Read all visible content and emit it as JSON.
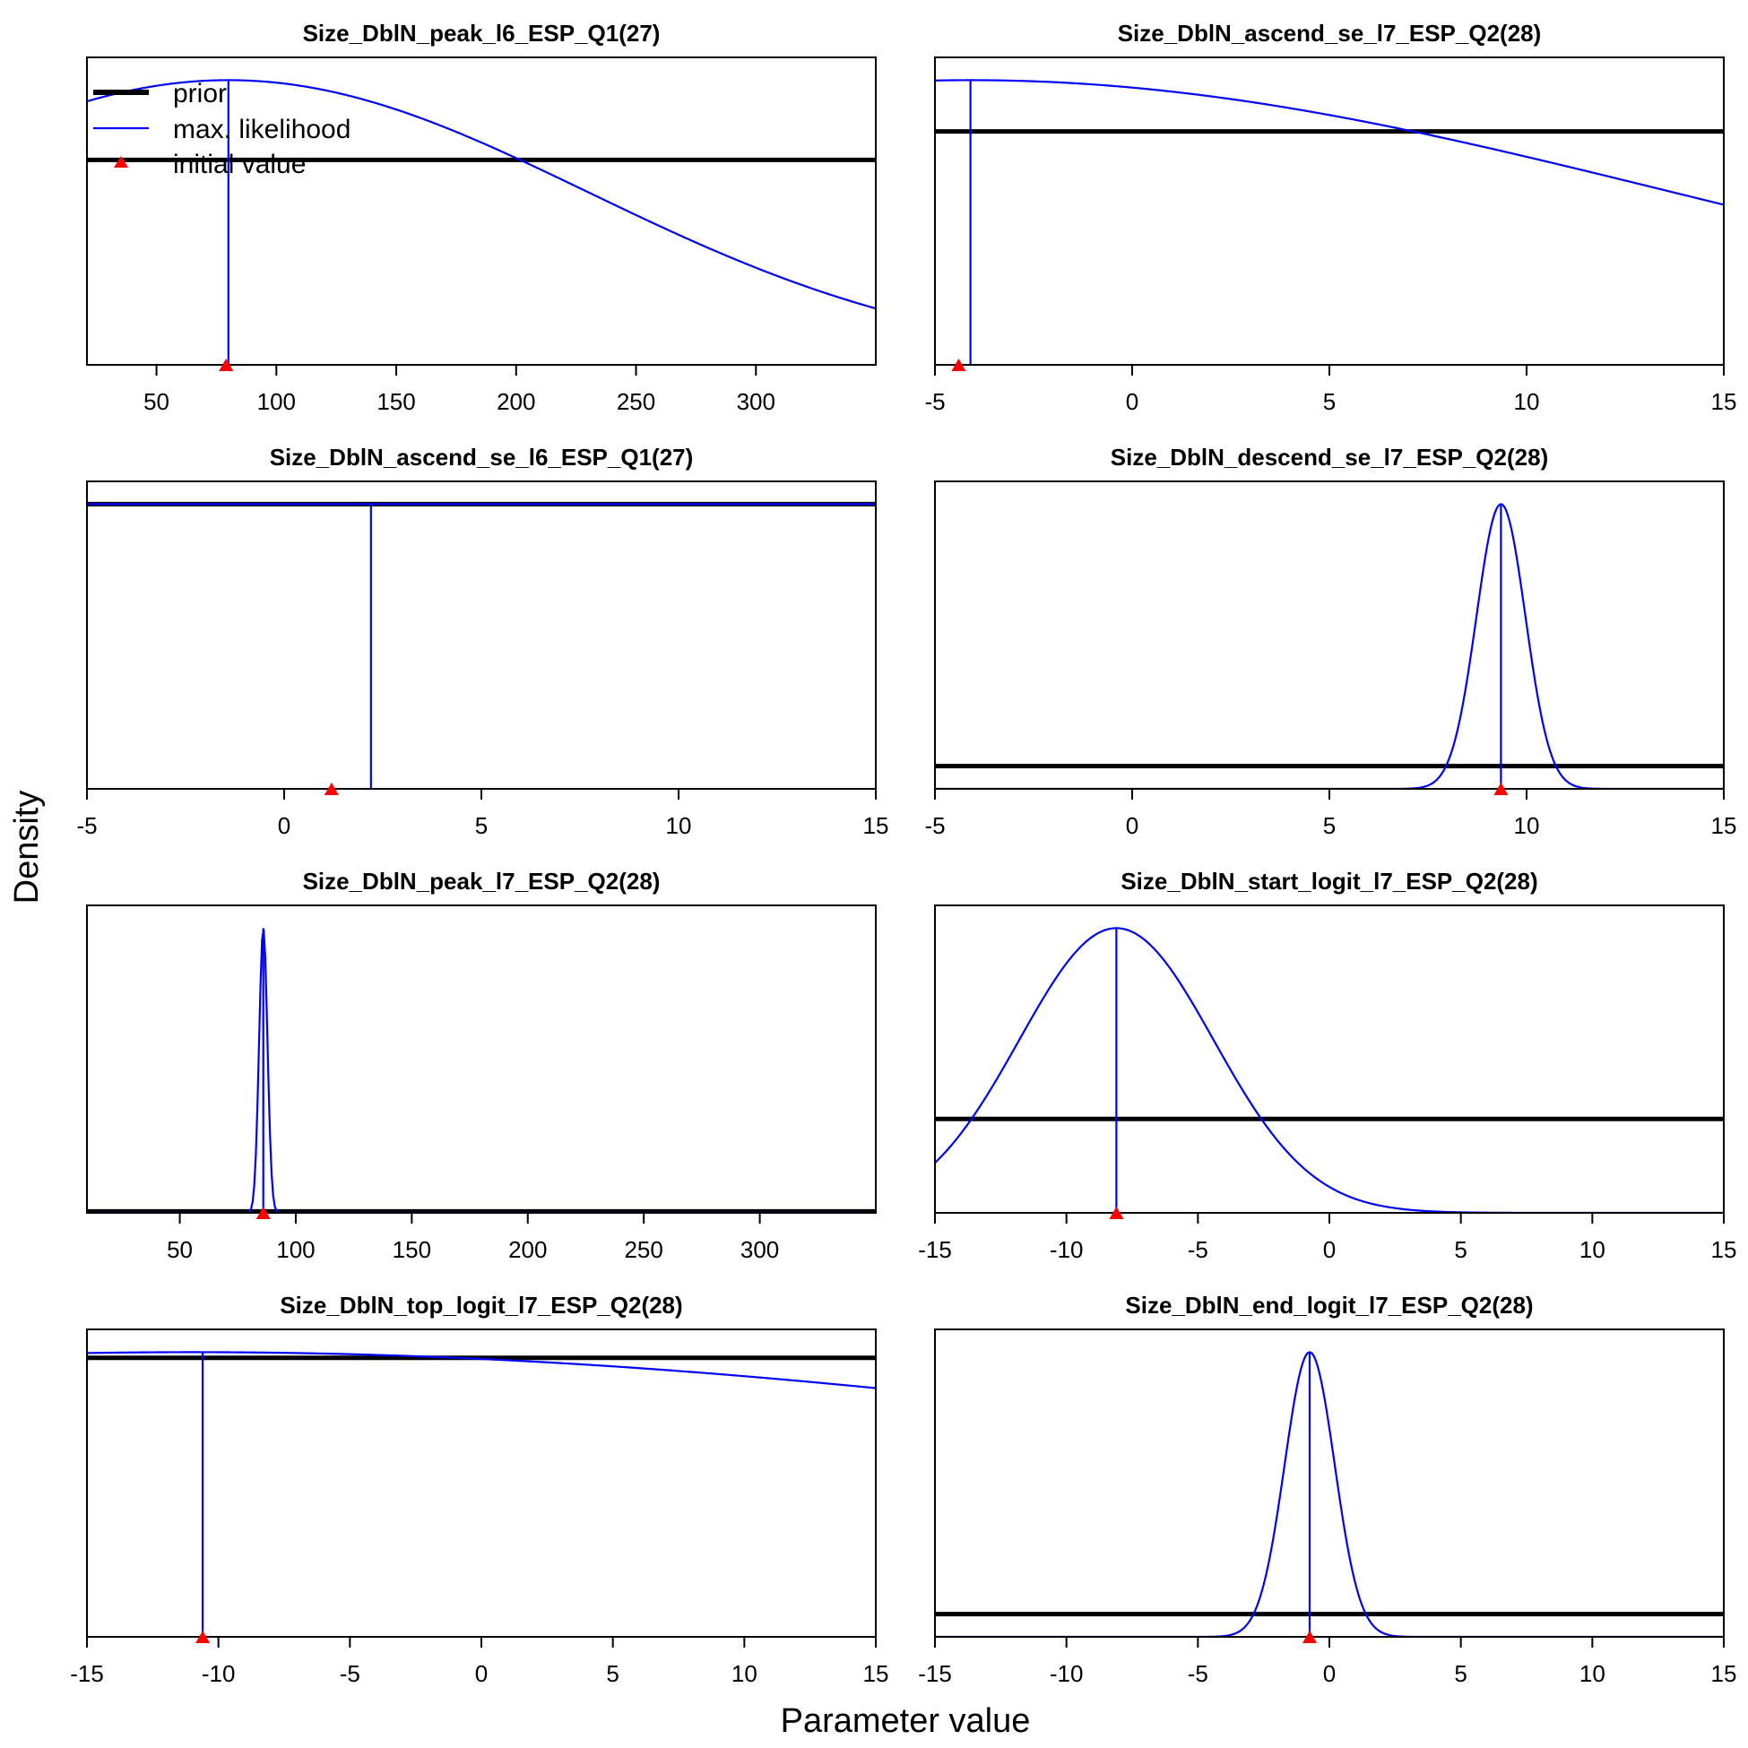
{
  "figure": {
    "xlabel": "Parameter value",
    "ylabel": "Density",
    "colors": {
      "prior": "#000000",
      "mle": "#0000ff",
      "initial": "#ff0000"
    }
  },
  "legend": {
    "placement": "top-left of first panel",
    "items": [
      {
        "label": "prior",
        "style": "thick-black-line"
      },
      {
        "label": "max. likelihood",
        "style": "blue-line"
      },
      {
        "label": "initial value",
        "style": "red-triangle"
      }
    ]
  },
  "chart_data": [
    {
      "type": "line",
      "title": "Size_DblN_peak_l6_ESP_Q1(27)",
      "xlim": [
        21,
        350
      ],
      "ylim": [
        0,
        1.08
      ],
      "xticks": [
        50,
        100,
        150,
        200,
        250,
        300
      ],
      "prior": {
        "kind": "uniform",
        "level": 0.72
      },
      "mle": {
        "kind": "normal",
        "mean": 80,
        "sd": 150,
        "peak": 1.0
      },
      "mle_estimate": 80,
      "initial_value": 79
    },
    {
      "type": "line",
      "title": "Size_DblN_ascend_se_l7_ESP_Q2(28)",
      "xlim": [
        -5,
        15
      ],
      "ylim": [
        0,
        1.08
      ],
      "xticks": [
        -5,
        0,
        5,
        10,
        15
      ],
      "prior": {
        "kind": "uniform",
        "level": 0.82
      },
      "mle": {
        "kind": "normal",
        "mean": -4.1,
        "sd": 17.8,
        "peak": 1.0
      },
      "mle_estimate": -4.1,
      "initial_value": -4.4
    },
    {
      "type": "line",
      "title": "Size_DblN_ascend_se_l6_ESP_Q1(27)",
      "xlim": [
        -5,
        15
      ],
      "ylim": [
        0,
        1.08
      ],
      "xticks": [
        -5,
        0,
        5,
        10,
        15
      ],
      "prior": {
        "kind": "uniform",
        "level": 1.0
      },
      "mle": {
        "kind": "normal",
        "mean": 2.2,
        "sd": 2000,
        "peak": 1.0
      },
      "mle_estimate": 2.2,
      "initial_value": 1.2
    },
    {
      "type": "line",
      "title": "Size_DblN_descend_se_l7_ESP_Q2(28)",
      "xlim": [
        -5,
        15
      ],
      "ylim": [
        0,
        1.08
      ],
      "xticks": [
        -5,
        0,
        5,
        10,
        15
      ],
      "prior": {
        "kind": "uniform",
        "level": 0.08
      },
      "mle": {
        "kind": "normal",
        "mean": 9.35,
        "sd": 0.62,
        "peak": 1.0
      },
      "mle_estimate": 9.35,
      "initial_value": 9.35
    },
    {
      "type": "line",
      "title": "Size_DblN_peak_l7_ESP_Q2(28)",
      "xlim": [
        10,
        350
      ],
      "ylim": [
        0,
        1.08
      ],
      "xticks": [
        50,
        100,
        150,
        200,
        250,
        300
      ],
      "prior": {
        "kind": "uniform",
        "level": 0.005
      },
      "mle": {
        "kind": "normal",
        "mean": 86,
        "sd": 1.8,
        "peak": 1.0
      },
      "mle_estimate": 86,
      "initial_value": 86
    },
    {
      "type": "line",
      "title": "Size_DblN_start_logit_l7_ESP_Q2(28)",
      "xlim": [
        -15,
        15
      ],
      "ylim": [
        0,
        1.08
      ],
      "xticks": [
        -15,
        -10,
        -5,
        0,
        5,
        10,
        15
      ],
      "prior": {
        "kind": "uniform",
        "level": 0.33
      },
      "mle": {
        "kind": "normal",
        "mean": -8.1,
        "sd": 3.7,
        "peak": 1.0
      },
      "mle_estimate": -8.1,
      "initial_value": -8.1
    },
    {
      "type": "line",
      "title": "Size_DblN_top_logit_l7_ESP_Q2(28)",
      "xlim": [
        -15,
        15
      ],
      "ylim": [
        0,
        1.08
      ],
      "xticks": [
        -15,
        -10,
        -5,
        0,
        5,
        10,
        15
      ],
      "prior": {
        "kind": "uniform",
        "level": 0.98
      },
      "mle": {
        "kind": "normal",
        "mean": -11,
        "sd": 50,
        "peak": 1.0
      },
      "mle_estimate": -10.6,
      "initial_value": -10.6
    },
    {
      "type": "line",
      "title": "Size_DblN_end_logit_l7_ESP_Q2(28)",
      "xlim": [
        -15,
        15
      ],
      "ylim": [
        0,
        1.08
      ],
      "xticks": [
        -15,
        -10,
        -5,
        0,
        5,
        10,
        15
      ],
      "prior": {
        "kind": "uniform",
        "level": 0.08
      },
      "mle": {
        "kind": "normal",
        "mean": -0.75,
        "sd": 0.95,
        "peak": 1.0
      },
      "mle_estimate": -0.75,
      "initial_value": -0.75
    }
  ]
}
